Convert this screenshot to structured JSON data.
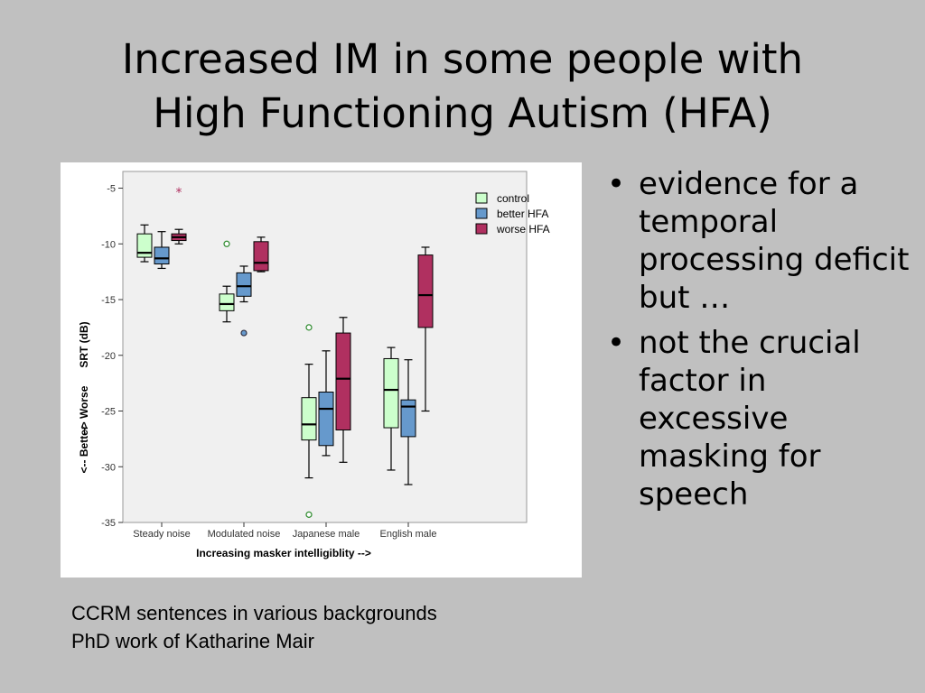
{
  "slide": {
    "title_line1": "Increased IM in some people with",
    "title_line2": "High Functioning Autism (HFA)",
    "bullets": [
      "evidence for a temporal processing deficit but …",
      "not the crucial factor in excessive masking for speech"
    ],
    "caption_line1": "CCRM sentences in various backgrounds",
    "caption_line2": "PhD work of Katharine Mair"
  },
  "chart_data": {
    "type": "boxplot",
    "xlabel": "Increasing masker intelligiblity -->",
    "ylabel": "SRT (dB)",
    "ylabel_top": "--> Worse",
    "ylabel_bottom": "<-- Better",
    "ylim": [
      -35,
      -3.5
    ],
    "yticks": [
      -5,
      -10,
      -15,
      -20,
      -25,
      -30,
      -35
    ],
    "grid": false,
    "legend_position": "top-right",
    "categories": [
      "Steady noise",
      "Modulated noise",
      "Japanese male",
      "English male"
    ],
    "series": [
      {
        "name": "control",
        "color": "#ccffcc",
        "boxes": [
          {
            "whisker_low": -11.6,
            "q1": -11.2,
            "median": -10.8,
            "q3": -9.1,
            "whisker_high": -8.3
          },
          {
            "whisker_low": -17.0,
            "q1": -16.0,
            "median": -15.4,
            "q3": -14.5,
            "whisker_high": -13.8
          },
          {
            "whisker_low": -31.0,
            "q1": -27.6,
            "median": -26.2,
            "q3": -23.8,
            "whisker_high": -20.8
          },
          {
            "whisker_low": -30.3,
            "q1": -26.5,
            "median": -23.1,
            "q3": -20.3,
            "whisker_high": -19.3
          }
        ],
        "outliers": [
          {
            "category": "Modulated noise",
            "value": -10.0,
            "marker": "circle"
          },
          {
            "category": "Japanese male",
            "value": -17.5,
            "marker": "circle"
          },
          {
            "category": "Japanese male",
            "value": -34.3,
            "marker": "circle"
          }
        ]
      },
      {
        "name": "better HFA",
        "color": "#6699cc",
        "boxes": [
          {
            "whisker_low": -12.2,
            "q1": -11.8,
            "median": -11.3,
            "q3": -10.3,
            "whisker_high": -8.9
          },
          {
            "whisker_low": -15.2,
            "q1": -14.7,
            "median": -13.8,
            "q3": -12.6,
            "whisker_high": -12.0
          },
          {
            "whisker_low": -29.0,
            "q1": -28.1,
            "median": -24.8,
            "q3": -23.3,
            "whisker_high": -19.6
          },
          {
            "whisker_low": -31.6,
            "q1": -27.3,
            "median": -24.6,
            "q3": -24.0,
            "whisker_high": -20.4
          }
        ],
        "outliers": [
          {
            "category": "Modulated noise",
            "value": -18.0,
            "marker": "circle"
          }
        ]
      },
      {
        "name": "worse HFA",
        "color": "#b03060",
        "boxes": [
          {
            "whisker_low": -10.0,
            "q1": -9.7,
            "median": -9.4,
            "q3": -9.1,
            "whisker_high": -8.7
          },
          {
            "whisker_low": -12.5,
            "q1": -12.4,
            "median": -11.7,
            "q3": -9.8,
            "whisker_high": -9.4
          },
          {
            "whisker_low": -29.6,
            "q1": -26.7,
            "median": -22.1,
            "q3": -18.0,
            "whisker_high": -16.6
          },
          {
            "whisker_low": -25.0,
            "q1": -17.5,
            "median": -14.6,
            "q3": -11.0,
            "whisker_high": -10.3
          }
        ],
        "outliers": [
          {
            "category": "Steady noise",
            "value": -5.3,
            "marker": "star"
          }
        ]
      }
    ]
  }
}
